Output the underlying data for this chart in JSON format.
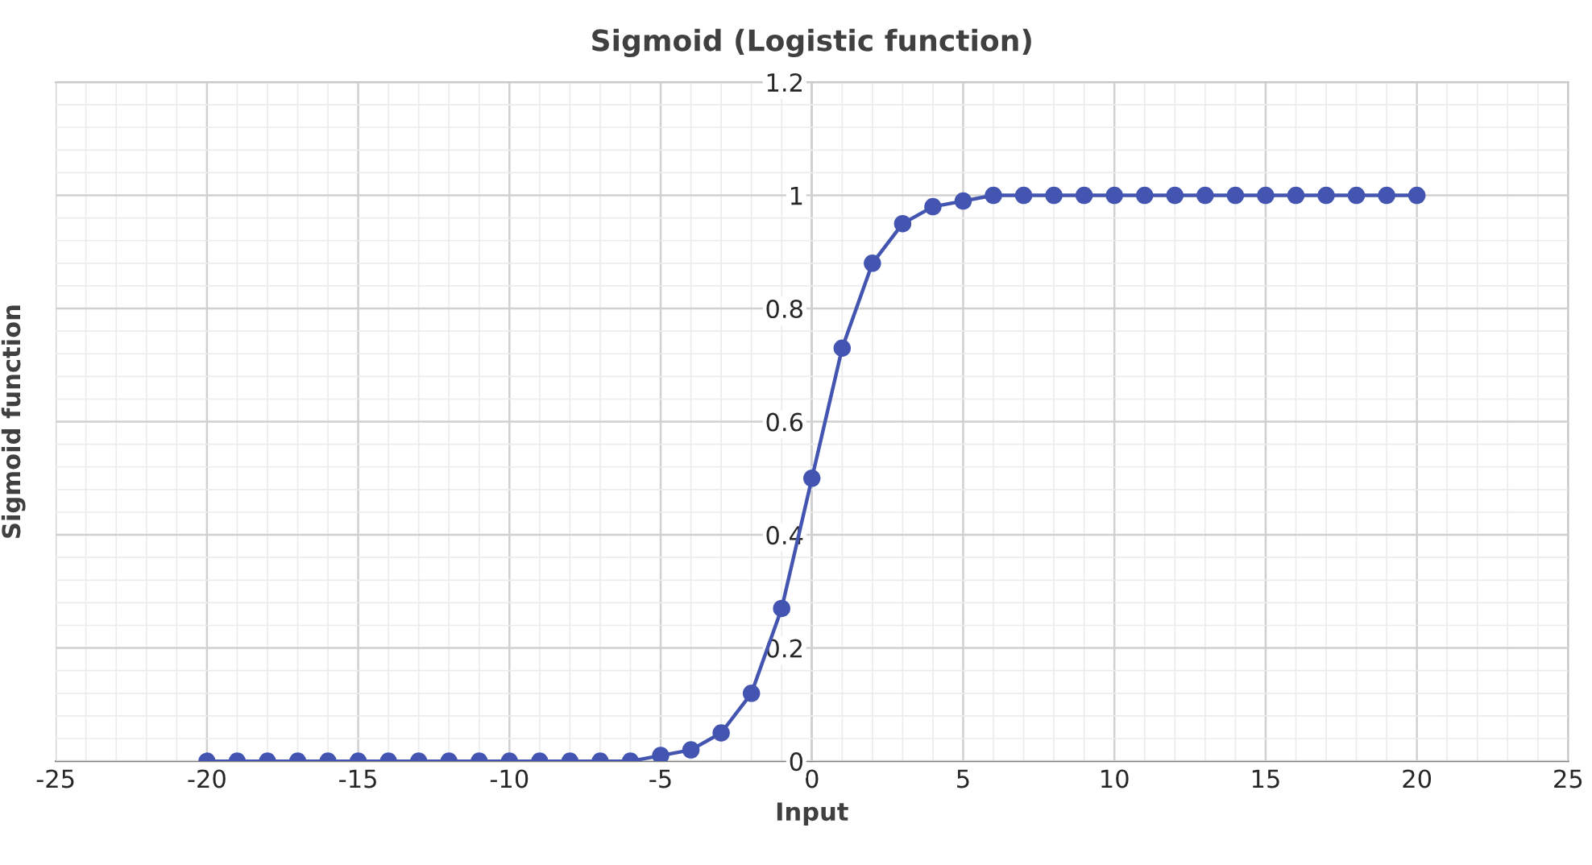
{
  "chart_data": {
    "type": "line",
    "title": "Sigmoid (Logistic function)",
    "xlabel": "Input",
    "ylabel": "Sigmoid function",
    "x": [
      -20,
      -19,
      -18,
      -17,
      -16,
      -15,
      -14,
      -13,
      -12,
      -11,
      -10,
      -9,
      -8,
      -7,
      -6,
      -5,
      -4,
      -3,
      -2,
      -1,
      0,
      1,
      2,
      3,
      4,
      5,
      6,
      7,
      8,
      9,
      10,
      11,
      12,
      13,
      14,
      15,
      16,
      17,
      18,
      19,
      20
    ],
    "series": [
      {
        "color": "#4355b0",
        "values": [
          0,
          0,
          0,
          0,
          0,
          0,
          0,
          0,
          0,
          0,
          0,
          0,
          0,
          0,
          0,
          0.01,
          0.02,
          0.05,
          0.12,
          0.27,
          0.5,
          0.73,
          0.88,
          0.95,
          0.98,
          0.99,
          1,
          1,
          1,
          1,
          1,
          1,
          1,
          1,
          1,
          1,
          1,
          1,
          1,
          1,
          1
        ]
      }
    ],
    "xlim": [
      -25,
      25
    ],
    "xticks": [
      -25,
      -20,
      -15,
      -10,
      -5,
      0,
      5,
      10,
      15,
      20,
      25
    ],
    "ylim": [
      0,
      1.2
    ],
    "yticks": [
      0,
      0.2,
      0.4,
      0.6,
      0.8,
      1,
      1.2
    ],
    "grid": true,
    "marker": "circle",
    "line_style": "solid"
  }
}
